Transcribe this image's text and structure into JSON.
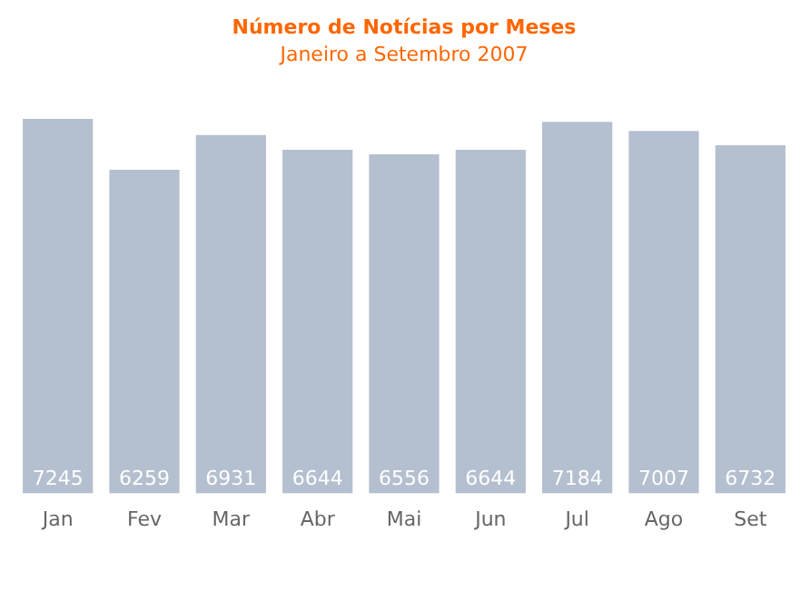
{
  "chart_data": {
    "type": "bar",
    "title": "Número de Notícias por Meses",
    "subtitle": "Janeiro a Setembro 2007",
    "categories": [
      "Jan",
      "Fev",
      "Mar",
      "Abr",
      "Mai",
      "Jun",
      "Jul",
      "Ago",
      "Set"
    ],
    "values": [
      7245,
      6259,
      6931,
      6644,
      6556,
      6644,
      7184,
      7007,
      6732
    ],
    "color": "#b4bfcf",
    "data_labels": true,
    "grid": false,
    "legend": false
  }
}
